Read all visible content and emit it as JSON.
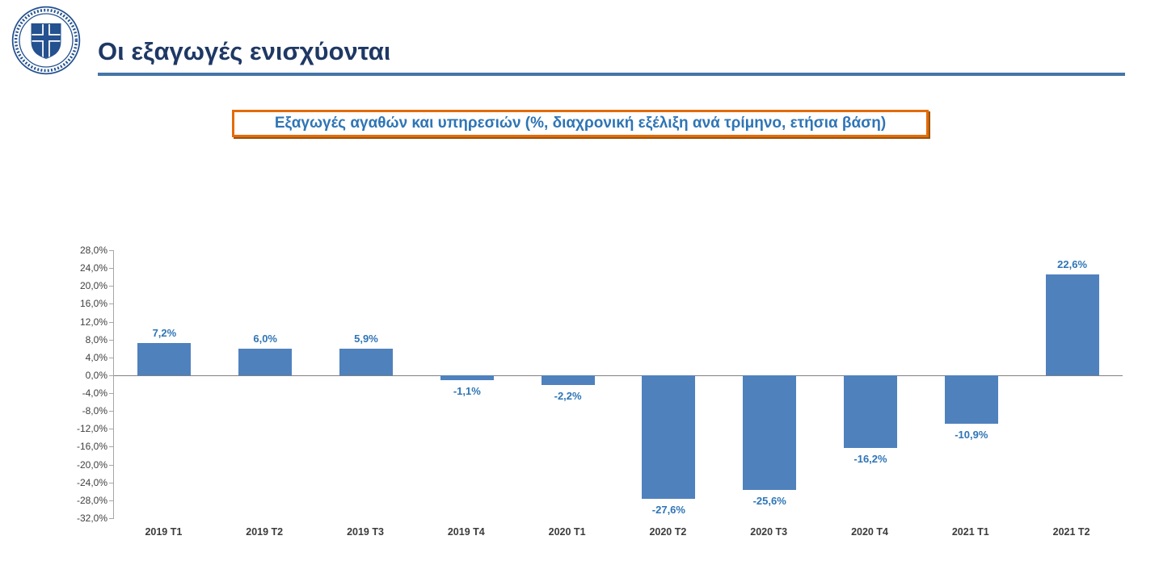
{
  "page": {
    "background": "#ffffff"
  },
  "header": {
    "title": "Οι εξαγωγές ενισχύονται",
    "title_color": "#1F3864",
    "rule_color": "#4575A7",
    "logo_icon": "hellenic-republic-emblem"
  },
  "subtitle": {
    "text": "Εξαγωγές αγαθών και υπηρεσιών (%, διαχρονική εξέλιξη ανά τρίμηνο, ετήσια βάση)",
    "border_color": "#E36C0A",
    "text_color": "#2E75B6"
  },
  "chart_data": {
    "type": "bar",
    "title": "Εξαγωγές αγαθών και υπηρεσιών (%, διαχρονική εξέλιξη ανά τρίμηνο, ετήσια βάση)",
    "categories": [
      "2019 T1",
      "2019 T2",
      "2019 T3",
      "2019 T4",
      "2020 T1",
      "2020 T2",
      "2020 T3",
      "2020 T4",
      "2021 T1",
      "2021 T2"
    ],
    "values": [
      7.2,
      6.0,
      5.9,
      -1.1,
      -2.2,
      -27.6,
      -25.6,
      -16.2,
      -10.9,
      22.6
    ],
    "value_labels": [
      "7,2%",
      "6,0%",
      "5,9%",
      "-1,1%",
      "-2,2%",
      "-27,6%",
      "-25,6%",
      "-16,2%",
      "-10,9%",
      "22,6%"
    ],
    "xlabel": "",
    "ylabel": "",
    "ylim": [
      -32,
      28
    ],
    "grid": false,
    "legend": false,
    "bar_color": "#4F81BD",
    "value_label_color": "#2E75B6",
    "axis_color": "#A6A6A6",
    "zero_line_color": "#808080",
    "y_ticks": [
      {
        "v": 28,
        "label": "28,0%"
      },
      {
        "v": 24,
        "label": "24,0%"
      },
      {
        "v": 20,
        "label": "20,0%"
      },
      {
        "v": 16,
        "label": "16,0%"
      },
      {
        "v": 12,
        "label": "12,0%"
      },
      {
        "v": 8,
        "label": "8,0%"
      },
      {
        "v": 4,
        "label": "4,0%"
      },
      {
        "v": 0,
        "label": "0,0%"
      },
      {
        "v": -4,
        "label": "-4,0%"
      },
      {
        "v": -8,
        "label": "-8,0%"
      },
      {
        "v": -12,
        "label": "-12,0%"
      },
      {
        "v": -16,
        "label": "-16,0%"
      },
      {
        "v": -20,
        "label": "-20,0%"
      },
      {
        "v": -24,
        "label": "-24,0%"
      },
      {
        "v": -28,
        "label": "-28,0%"
      },
      {
        "v": -32,
        "label": "-32,0%"
      }
    ]
  }
}
